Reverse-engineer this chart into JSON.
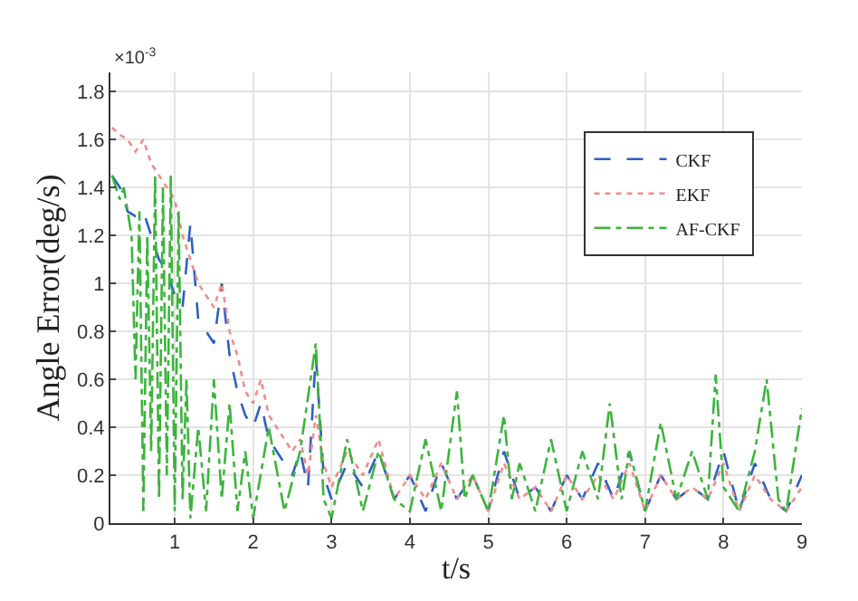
{
  "chart_data": {
    "type": "line",
    "xlabel": "t/s",
    "ylabel": "Angle Error(deg/s)",
    "annotations": [
      "×10$^{-3}$"
    ],
    "xlim": [
      0.18,
      9
    ],
    "xticks": [
      1,
      2,
      3,
      4,
      5,
      6,
      7,
      8,
      9
    ],
    "ylim": [
      0,
      1.88
    ],
    "yticks": [
      0,
      0.2,
      0.4,
      0.6,
      0.8,
      1,
      1.2,
      1.4,
      1.6,
      1.8
    ],
    "grid": true,
    "legend": "top right",
    "marker": "none",
    "x": [
      0.2,
      0.3,
      0.4,
      0.5,
      0.6,
      0.7,
      0.8,
      0.9,
      1.0,
      1.1,
      1.2,
      1.3,
      1.4,
      1.5,
      1.6,
      1.7,
      1.8,
      1.9,
      2.0,
      2.1,
      2.2,
      2.3,
      2.4,
      2.5,
      2.6,
      2.7,
      2.8,
      2.9,
      3.0,
      3.2,
      3.4,
      3.6,
      3.8,
      4.0,
      4.2,
      4.4,
      4.6,
      4.8,
      5.0,
      5.2,
      5.4,
      5.6,
      5.8,
      6.0,
      6.2,
      6.4,
      6.6,
      6.8,
      7.0,
      7.2,
      7.4,
      7.6,
      7.8,
      8.0,
      8.2,
      8.4,
      8.6,
      8.8,
      9.0
    ],
    "series": [
      {
        "name": "CKF",
        "color": "#2f5fc4",
        "line_style": "dashed",
        "values": [
          1.45,
          1.4,
          1.3,
          1.28,
          1.3,
          1.2,
          1.1,
          1.05,
          0.95,
          0.9,
          1.25,
          0.85,
          0.8,
          0.75,
          1.0,
          0.7,
          0.55,
          0.45,
          0.4,
          0.5,
          0.35,
          0.3,
          0.25,
          0.2,
          0.3,
          0.15,
          0.7,
          0.2,
          0.1,
          0.25,
          0.15,
          0.3,
          0.1,
          0.2,
          0.05,
          0.25,
          0.1,
          0.2,
          0.05,
          0.3,
          0.1,
          0.15,
          0.05,
          0.2,
          0.1,
          0.25,
          0.1,
          0.3,
          0.05,
          0.2,
          0.1,
          0.15,
          0.1,
          0.3,
          0.05,
          0.25,
          0.1,
          0.05,
          0.2
        ]
      },
      {
        "name": "EKF",
        "color": "#f08c8c",
        "line_style": "dotted",
        "values": [
          1.65,
          1.62,
          1.6,
          1.55,
          1.6,
          1.5,
          1.45,
          1.4,
          1.35,
          1.2,
          1.1,
          1.0,
          0.95,
          0.9,
          1.0,
          0.8,
          0.7,
          0.55,
          0.5,
          0.6,
          0.45,
          0.4,
          0.35,
          0.3,
          0.35,
          0.2,
          0.45,
          0.25,
          0.15,
          0.3,
          0.2,
          0.35,
          0.1,
          0.2,
          0.1,
          0.25,
          0.1,
          0.2,
          0.05,
          0.25,
          0.1,
          0.15,
          0.05,
          0.2,
          0.1,
          0.2,
          0.1,
          0.25,
          0.05,
          0.2,
          0.1,
          0.15,
          0.1,
          0.25,
          0.05,
          0.2,
          0.1,
          0.05,
          0.15
        ]
      },
      {
        "name": "AF-CKF",
        "color": "#3cb43c",
        "line_style": "dashdot",
        "x": [
          0.2,
          0.3,
          0.35,
          0.45,
          0.5,
          0.55,
          0.6,
          0.65,
          0.7,
          0.75,
          0.8,
          0.85,
          0.9,
          0.95,
          1.0,
          1.05,
          1.1,
          1.15,
          1.2,
          1.3,
          1.4,
          1.5,
          1.6,
          1.7,
          1.8,
          1.9,
          2.0,
          2.2,
          2.4,
          2.6,
          2.8,
          2.9,
          3.0,
          3.2,
          3.4,
          3.6,
          3.8,
          4.0,
          4.2,
          4.4,
          4.6,
          4.7,
          4.8,
          5.0,
          5.2,
          5.3,
          5.4,
          5.6,
          5.8,
          6.0,
          6.2,
          6.4,
          6.55,
          6.7,
          6.8,
          7.0,
          7.2,
          7.4,
          7.6,
          7.8,
          7.9,
          8.0,
          8.2,
          8.4,
          8.55,
          8.7,
          8.8,
          9.0
        ],
        "values": [
          1.45,
          1.35,
          1.4,
          1.2,
          0.6,
          1.3,
          0.05,
          1.2,
          0.3,
          1.45,
          0.1,
          1.4,
          0.2,
          1.45,
          0.05,
          1.3,
          0.1,
          0.6,
          0.02,
          0.4,
          0.05,
          0.6,
          0.1,
          0.5,
          0.05,
          0.3,
          0.02,
          0.4,
          0.05,
          0.3,
          0.75,
          0.1,
          0.02,
          0.35,
          0.05,
          0.3,
          0.1,
          0.05,
          0.35,
          0.05,
          0.55,
          0.1,
          0.2,
          0.05,
          0.45,
          0.1,
          0.25,
          0.05,
          0.35,
          0.05,
          0.3,
          0.1,
          0.5,
          0.1,
          0.3,
          0.05,
          0.42,
          0.1,
          0.3,
          0.1,
          0.62,
          0.15,
          0.05,
          0.3,
          0.6,
          0.1,
          0.05,
          0.48
        ]
      }
    ]
  }
}
